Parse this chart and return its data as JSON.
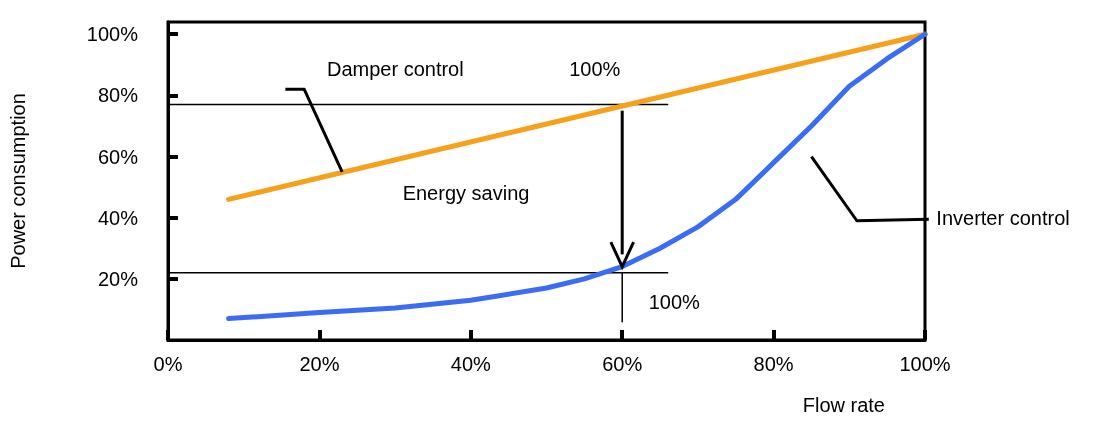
{
  "chart_data": {
    "type": "line",
    "xlabel": "Flow rate",
    "ylabel": "Power consumption",
    "xlim": [
      0,
      100
    ],
    "ylim": [
      0,
      104
    ],
    "xticks": [
      {
        "value": 0,
        "label": "0%"
      },
      {
        "value": 20,
        "label": "20%"
      },
      {
        "value": 40,
        "label": "40%"
      },
      {
        "value": 60,
        "label": "60%"
      },
      {
        "value": 80,
        "label": "80%"
      },
      {
        "value": 100,
        "label": "100%"
      }
    ],
    "yticks": [
      {
        "value": 20,
        "label": "20%"
      },
      {
        "value": 40,
        "label": "40%"
      },
      {
        "value": 60,
        "label": "60%"
      },
      {
        "value": 80,
        "label": "80%"
      },
      {
        "value": 100,
        "label": "100%"
      }
    ],
    "grid": false,
    "marker": "none",
    "line_style": "solid",
    "series": [
      {
        "color": "#f7a01c",
        "x": [
          8,
          100
        ],
        "values": [
          46,
          100
        ]
      },
      {
        "color": "#3a6cf4",
        "x": [
          8,
          20,
          30,
          40,
          50,
          55,
          60,
          65,
          70,
          75,
          80,
          85,
          90,
          95,
          100
        ],
        "values": [
          7,
          9,
          10.5,
          13,
          17,
          20,
          24,
          30,
          37,
          46,
          58,
          70,
          83,
          92,
          100
        ]
      },
      {
        "color": "#000000",
        "x": [
          0,
          66
        ],
        "values": [
          77,
          77
        ]
      },
      {
        "color": "#000000",
        "x": [
          0,
          66
        ],
        "values": [
          22,
          22
        ]
      },
      {
        "color": "#000000",
        "x": [
          60,
          60
        ],
        "values": [
          22,
          6
        ]
      }
    ],
    "annotations": [
      "Damper control",
      "Energy saving",
      "Inverter control",
      "100%",
      "100%"
    ]
  }
}
